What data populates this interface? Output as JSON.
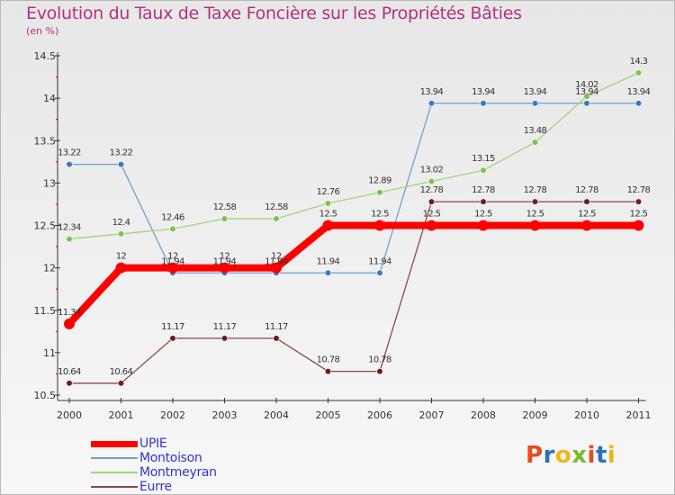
{
  "title": "Evolution du Taux de Taxe Foncière sur les Propriétés Bâties",
  "unit_label": "(en %)",
  "logo": {
    "text": "Proxiti",
    "letters": [
      "P",
      "r",
      "o",
      "x",
      "i",
      "t",
      "i"
    ],
    "colors": [
      "#e84c1e",
      "#2b6fbf",
      "#f1b51c",
      "#7cb82f",
      "#e84c1e",
      "#2b6fbf",
      "#f1b51c"
    ]
  },
  "chart_data": {
    "type": "line",
    "title": "Evolution du Taux de Taxe Foncière sur les Propriétés Bâties",
    "ylabel": "(en %)",
    "xlabel": "",
    "categories": [
      "2000",
      "2001",
      "2002",
      "2003",
      "2004",
      "2005",
      "2006",
      "2007",
      "2008",
      "2009",
      "2010",
      "2011"
    ],
    "ylim": [
      10.5,
      14.5
    ],
    "yticks": [
      10.5,
      11,
      11.5,
      12,
      12.5,
      13,
      13.5,
      14,
      14.5
    ],
    "ytick_labels": [
      "10.5",
      "11",
      "11.5",
      "12",
      "12.5",
      "13",
      "13.5",
      "14",
      "14.5"
    ],
    "series": [
      {
        "name": "UPIE",
        "color": "#ff0000",
        "width": 8,
        "marker": "#ff0000",
        "values": [
          11.34,
          12,
          12,
          12,
          12,
          12.5,
          12.5,
          12.5,
          12.5,
          12.5,
          12.5,
          12.5
        ],
        "labels": [
          "11.34",
          "12",
          "12",
          "12",
          "12",
          "12.5",
          "12.5",
          "12.5",
          "12.5",
          "12.5",
          "12.5",
          "12.5"
        ]
      },
      {
        "name": "Montoison",
        "color": "#6f9fd0",
        "width": 1.3,
        "marker": "#3a7abf",
        "values": [
          13.22,
          13.22,
          11.94,
          11.94,
          11.94,
          11.94,
          11.94,
          13.94,
          13.94,
          13.94,
          13.94,
          13.94
        ],
        "labels": [
          "13.22",
          "13.22",
          "11.94",
          "11.94",
          "11.94",
          "11.94",
          "11.94",
          "13.94",
          "13.94",
          "13.94",
          "13.94",
          "13.94"
        ]
      },
      {
        "name": "Montmeyran",
        "color": "#9fd67a",
        "width": 1.3,
        "marker": "#7cc44a",
        "values": [
          12.34,
          12.4,
          12.46,
          12.58,
          12.58,
          12.76,
          12.89,
          13.02,
          13.15,
          13.48,
          14.02,
          14.3
        ],
        "labels": [
          "12.34",
          "12.4",
          "12.46",
          "12.58",
          "12.58",
          "12.76",
          "12.89",
          "13.02",
          "13.15",
          "13.48",
          "14.02",
          "14.3"
        ]
      },
      {
        "name": "Eurre",
        "color": "#8a4a4a",
        "width": 1.3,
        "marker": "#6e1c1c",
        "values": [
          10.64,
          10.64,
          11.17,
          11.17,
          11.17,
          10.78,
          10.78,
          12.78,
          12.78,
          12.78,
          12.78,
          12.78
        ],
        "labels": [
          "10.64",
          "10.64",
          "11.17",
          "11.17",
          "11.17",
          "10.78",
          "10.78",
          "12.78",
          "12.78",
          "12.78",
          "12.78",
          "12.78"
        ]
      }
    ],
    "grid": false,
    "legend": "bottom-left"
  }
}
